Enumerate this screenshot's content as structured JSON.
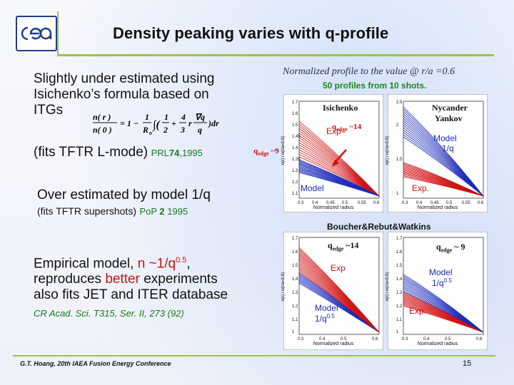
{
  "title": "Density peaking varies with q-profile",
  "left": {
    "para1": [
      "Slightly under estimated using",
      "Isichenko’s formula based on",
      "ITGs"
    ],
    "formula": "n(r) / n(0) = 1 − 1/R₀ ∫ ( 1/2 + 4/3 r ∇q/q ) dr",
    "fits1_text": "(fits TFTR L-mode)",
    "fits1_cite_pre": "PRL",
    "fits1_cite_bold": "74",
    "fits1_cite_post": ",1995",
    "para2": "Over estimated by model 1/q",
    "fits2_text": "(fits TFTR supershots)",
    "fits2_cite_pre": "PoP ",
    "fits2_cite_bold": "2",
    "fits2_cite_post": " 1995",
    "para3_line1_pre": "Empirical model, ",
    "para3_line1_red": "n ~1/q",
    "para3_line1_sup": "0.5",
    "para3_line1_post": ",",
    "para3_line2_pre": "reproduces ",
    "para3_line2_red": "better",
    "para3_line2_post": " experiments",
    "para3_line3": "also fits JET and ITER database",
    "cite3": "CR Acad. Sci. T315, Ser. II, 273 (92)"
  },
  "right": {
    "normalized": "Normalized profile to the value @ r/a =0.6",
    "fifty": "50 profiles from 10 shots.",
    "boucher": "Boucher&Rebut&Watkins",
    "xlabel": "Normalized radius",
    "ylabel": "n(r) / n(r/a=0.6)",
    "p1": {
      "name": "Isichenko",
      "exp": "Exp",
      "model": "Model",
      "qedge": "q",
      "qsub": "edge",
      "qval": " ~14",
      "qedge_left": "q",
      "qsub_left": "edge",
      "qval_left": " ~9"
    },
    "p2": {
      "name1": "Nycander",
      "name2": "Yankov",
      "model": "Model",
      "model2": "1/q",
      "exp": "Exp."
    },
    "p3": {
      "qedge": "q",
      "qsub": "edge",
      "qval": " ~14",
      "exp": "Exp",
      "model": "Model",
      "model2": "1/q",
      "sup": "0.5"
    },
    "p4": {
      "qedge": "q",
      "qsub": "edge",
      "qval": " ~ 9",
      "model": "Model",
      "model2": "1/q",
      "sup": "0.5",
      "exp": "Exp."
    }
  },
  "footer": "G.T. Hoang, 20th IAEA Fusion Energy Conference",
  "page": "15",
  "colors": {
    "accent_line": "#9bc34a",
    "exp": "#d01010",
    "model": "#1a2ab8",
    "cite": "#1a7a1a"
  }
}
